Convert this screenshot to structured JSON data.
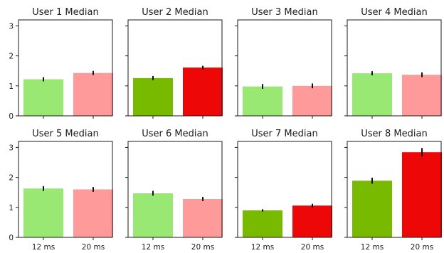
{
  "chart_data": [
    {
      "type": "bar",
      "title": "User 1 Median",
      "categories": [
        "12 ms",
        "20 ms"
      ],
      "values": [
        1.22,
        1.43
      ],
      "errors": [
        0.07,
        0.07
      ],
      "highlight": false,
      "ylim": [
        0,
        3.2
      ],
      "yticks": [
        "0",
        "1",
        "2",
        "3"
      ]
    },
    {
      "type": "bar",
      "title": "User 2 Median",
      "categories": [
        "12 ms",
        "20 ms"
      ],
      "values": [
        1.26,
        1.61
      ],
      "errors": [
        0.07,
        0.06
      ],
      "highlight": true,
      "ylim": [
        0,
        3.2
      ]
    },
    {
      "type": "bar",
      "title": "User 3 Median",
      "categories": [
        "12 ms",
        "20 ms"
      ],
      "values": [
        0.98,
        1.0
      ],
      "errors": [
        0.08,
        0.08
      ],
      "highlight": false,
      "ylim": [
        0,
        3.2
      ]
    },
    {
      "type": "bar",
      "title": "User 4 Median",
      "categories": [
        "12 ms",
        "20 ms"
      ],
      "values": [
        1.42,
        1.37
      ],
      "errors": [
        0.07,
        0.08
      ],
      "highlight": false,
      "ylim": [
        0,
        3.2
      ]
    },
    {
      "type": "bar",
      "title": "User 5 Median",
      "categories": [
        "12 ms",
        "20 ms"
      ],
      "values": [
        1.63,
        1.6
      ],
      "errors": [
        0.08,
        0.08
      ],
      "highlight": false,
      "ylim": [
        0,
        3.2
      ],
      "yticks": [
        "0",
        "1",
        "2",
        "3"
      ],
      "xticks": [
        "12 ms",
        "20 ms"
      ]
    },
    {
      "type": "bar",
      "title": "User 6 Median",
      "categories": [
        "12 ms",
        "20 ms"
      ],
      "values": [
        1.47,
        1.28
      ],
      "errors": [
        0.08,
        0.07
      ],
      "highlight": false,
      "ylim": [
        0,
        3.2
      ],
      "xticks": [
        "12 ms",
        "20 ms"
      ]
    },
    {
      "type": "bar",
      "title": "User 7 Median",
      "categories": [
        "12 ms",
        "20 ms"
      ],
      "values": [
        0.9,
        1.06
      ],
      "errors": [
        0.04,
        0.06
      ],
      "highlight": true,
      "ylim": [
        0,
        3.2
      ],
      "xticks": [
        "12 ms",
        "20 ms"
      ]
    },
    {
      "type": "bar",
      "title": "User 8 Median",
      "categories": [
        "12 ms",
        "20 ms"
      ],
      "values": [
        1.89,
        2.84
      ],
      "errors": [
        0.1,
        0.14
      ],
      "highlight": true,
      "ylim": [
        0,
        3.2
      ],
      "xticks": [
        "12 ms",
        "20 ms"
      ]
    }
  ],
  "colors": {
    "normal_12": "#99e874",
    "normal_20": "#ff9a9a",
    "highlight_12": "#77ba00",
    "highlight_20": "#ee0707",
    "axis": "#1a1a1a",
    "error_bar": "#111111"
  }
}
